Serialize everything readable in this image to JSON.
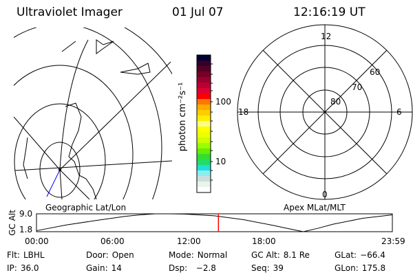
{
  "header": {
    "instrument": "Ultraviolet Imager",
    "date": "01 Jul 07",
    "time": "12:16:19 UT"
  },
  "geo_map": {
    "label": "Geographic Lat/Lon",
    "track_color": "#0000ff"
  },
  "colorbar": {
    "unit_label": "photon cm⁻²s⁻¹",
    "ticks": [
      "100",
      "10"
    ],
    "colors": [
      "#000033",
      "#33002a",
      "#550026",
      "#770026",
      "#990030",
      "#bb0033",
      "#dd0033",
      "#ff0000",
      "#ff7700",
      "#ffaa00",
      "#ffcc00",
      "#ffee00",
      "#ffff88",
      "#ffff00",
      "#eeff00",
      "#ccff00",
      "#99ff00",
      "#66ee00",
      "#33dd33",
      "#22dd66",
      "#22dddd",
      "#88eeee",
      "#ccdddd",
      "#e8f4ec",
      "#ffffff"
    ]
  },
  "mag_map": {
    "label": "Apex MLat/MLT",
    "mlt_labels": {
      "top": "12",
      "right": "6",
      "bottom": "0",
      "left": "18"
    },
    "lat_labels": [
      "80",
      "70",
      "60"
    ]
  },
  "altitude_plot": {
    "ylabel": "GC Alt",
    "yticks": [
      "9.0",
      "1.8"
    ],
    "xticks": [
      "00:00",
      "06:00",
      "12:00",
      "18:00",
      "23:59"
    ],
    "ylim": [
      1.8,
      9.0
    ],
    "current_time_hours": 12.27,
    "marker_color": "#ff0000",
    "hours": [
      0,
      2,
      4,
      6,
      7,
      8,
      9,
      10,
      12,
      14,
      16,
      17,
      18,
      19,
      20,
      22,
      24
    ],
    "alt_re": [
      2.2,
      4.5,
      6.3,
      8.0,
      8.6,
      9.0,
      9.0,
      8.9,
      8.2,
      6.6,
      4.3,
      3.0,
      1.8,
      3.2,
      4.8,
      7.2,
      8.6
    ]
  },
  "status": [
    [
      {
        "label": "Flt:",
        "value": "LBHL"
      },
      {
        "label": "Door:",
        "value": "Open"
      },
      {
        "label": "Mode:",
        "value": "Normal"
      },
      {
        "label": "GC Alt:",
        "value": "8.1 Re"
      },
      {
        "label": "GLat:",
        "value": "−66.4"
      }
    ],
    [
      {
        "label": "IP:",
        "value": "36.0"
      },
      {
        "label": "Gain:",
        "value": "14"
      },
      {
        "label": "Dsp:",
        "value": "  −2.8"
      },
      {
        "label": "Seq:",
        "value": "39"
      },
      {
        "label": "GLon:",
        "value": "175.8"
      }
    ]
  ]
}
